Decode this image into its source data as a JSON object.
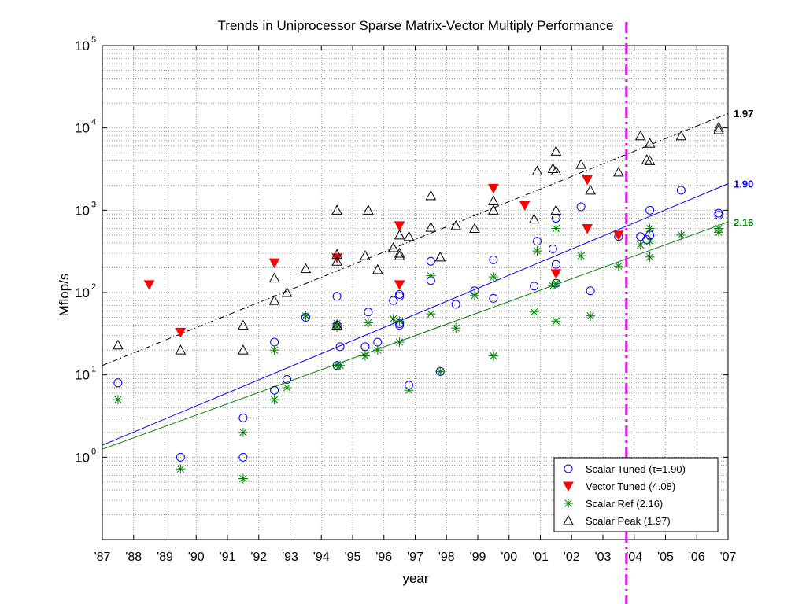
{
  "chart_data": {
    "type": "scatter",
    "title": "Trends in Uniprocessor Sparse Matrix-Vector Multiply Performance",
    "xlabel": "year",
    "ylabel": "Mflop/s",
    "yscale": "log",
    "xlim": [
      1987,
      2007
    ],
    "ylim": [
      0.1,
      100000
    ],
    "grid": true,
    "legend_position": "bottom-right",
    "x_ticks": [
      {
        "v": 1987,
        "label": "'87"
      },
      {
        "v": 1988,
        "label": "'88"
      },
      {
        "v": 1989,
        "label": "'89"
      },
      {
        "v": 1990,
        "label": "'90"
      },
      {
        "v": 1991,
        "label": "'91"
      },
      {
        "v": 1992,
        "label": "'92"
      },
      {
        "v": 1993,
        "label": "'93"
      },
      {
        "v": 1994,
        "label": "'94"
      },
      {
        "v": 1995,
        "label": "'95"
      },
      {
        "v": 1996,
        "label": "'96"
      },
      {
        "v": 1997,
        "label": "'97"
      },
      {
        "v": 1998,
        "label": "'98"
      },
      {
        "v": 1999,
        "label": "'99"
      },
      {
        "v": 2000,
        "label": "'00"
      },
      {
        "v": 2001,
        "label": "'01"
      },
      {
        "v": 2002,
        "label": "'02"
      },
      {
        "v": 2003,
        "label": "'03"
      },
      {
        "v": 2004,
        "label": "'04"
      },
      {
        "v": 2005,
        "label": "'05"
      },
      {
        "v": 2006,
        "label": "'06"
      },
      {
        "v": 2007,
        "label": "'07"
      }
    ],
    "y_ticks": [
      {
        "v": 1,
        "base": "10",
        "exp": "0"
      },
      {
        "v": 10,
        "base": "10",
        "exp": "1"
      },
      {
        "v": 100,
        "base": "10",
        "exp": "2"
      },
      {
        "v": 1000,
        "base": "10",
        "exp": "3"
      },
      {
        "v": 10000,
        "base": "10",
        "exp": "4"
      },
      {
        "v": 100000,
        "base": "10",
        "exp": "5"
      }
    ],
    "vertical_line": {
      "x": 2003.75,
      "color": "#dd22dd"
    },
    "series": [
      {
        "name": "Scalar Tuned (τ=1.90)",
        "marker": "circle",
        "color": "#0000ff",
        "points": [
          [
            1987.5,
            8
          ],
          [
            1989.5,
            1
          ],
          [
            1991.5,
            3
          ],
          [
            1991.5,
            1
          ],
          [
            1992.5,
            25
          ],
          [
            1992.5,
            6.5
          ],
          [
            1992.9,
            8.8
          ],
          [
            1993.5,
            50
          ],
          [
            1994.5,
            90
          ],
          [
            1994.5,
            40
          ],
          [
            1994.5,
            13
          ],
          [
            1994.6,
            22
          ],
          [
            1995.4,
            22
          ],
          [
            1995.5,
            58
          ],
          [
            1995.8,
            25
          ],
          [
            1996.3,
            80
          ],
          [
            1996.5,
            90
          ],
          [
            1996.5,
            95
          ],
          [
            1996.5,
            42
          ],
          [
            1996.5,
            40
          ],
          [
            1996.8,
            7.5
          ],
          [
            1997.5,
            240
          ],
          [
            1997.5,
            140
          ],
          [
            1997.8,
            11
          ],
          [
            1998.3,
            72
          ],
          [
            1998.9,
            105
          ],
          [
            1999.5,
            250
          ],
          [
            1999.5,
            85
          ],
          [
            2000.8,
            120
          ],
          [
            2000.9,
            420
          ],
          [
            2001.4,
            340
          ],
          [
            2001.5,
            800
          ],
          [
            2001.5,
            220
          ],
          [
            2001.5,
            130
          ],
          [
            2002.3,
            1100
          ],
          [
            2002.6,
            105
          ],
          [
            2003.5,
            480
          ],
          [
            2004.2,
            480
          ],
          [
            2004.4,
            440
          ],
          [
            2004.5,
            500
          ],
          [
            2004.5,
            1000
          ],
          [
            2005.5,
            1750
          ],
          [
            2006.7,
            870
          ],
          [
            2006.7,
            920
          ]
        ]
      },
      {
        "name": "Vector Tuned (4.08)",
        "marker": "triangle-down",
        "color": "#ff0000",
        "points": [
          [
            1988.5,
            125
          ],
          [
            1989.5,
            33
          ],
          [
            1992.5,
            230
          ],
          [
            1994.5,
            265
          ],
          [
            1996.5,
            125
          ],
          [
            1996.5,
            650
          ],
          [
            1999.5,
            1850
          ],
          [
            2000.5,
            1150
          ],
          [
            2001.5,
            170
          ],
          [
            2002.5,
            2350
          ],
          [
            2002.5,
            600
          ],
          [
            2003.5,
            500
          ]
        ]
      },
      {
        "name": "Scalar Ref (2.16)",
        "marker": "asterisk",
        "color": "#008000",
        "points": [
          [
            1987.5,
            5
          ],
          [
            1989.5,
            0.72
          ],
          [
            1991.5,
            2
          ],
          [
            1991.5,
            0.55
          ],
          [
            1992.5,
            20
          ],
          [
            1992.5,
            5
          ],
          [
            1992.9,
            7
          ],
          [
            1993.5,
            52
          ],
          [
            1994.5,
            42
          ],
          [
            1994.5,
            38
          ],
          [
            1994.5,
            13
          ],
          [
            1994.6,
            13
          ],
          [
            1995.4,
            17
          ],
          [
            1995.5,
            43
          ],
          [
            1995.8,
            20
          ],
          [
            1996.3,
            48
          ],
          [
            1996.5,
            45
          ],
          [
            1996.5,
            25
          ],
          [
            1996.8,
            6.5
          ],
          [
            1997.5,
            160
          ],
          [
            1997.5,
            55
          ],
          [
            1997.8,
            11
          ],
          [
            1998.3,
            37
          ],
          [
            1998.9,
            92
          ],
          [
            1999.5,
            155
          ],
          [
            1999.5,
            17
          ],
          [
            2000.8,
            58
          ],
          [
            2000.9,
            320
          ],
          [
            2001.4,
            120
          ],
          [
            2001.5,
            600
          ],
          [
            2001.5,
            45
          ],
          [
            2001.5,
            130
          ],
          [
            2002.3,
            280
          ],
          [
            2002.6,
            52
          ],
          [
            2003.5,
            210
          ],
          [
            2004.2,
            380
          ],
          [
            2004.5,
            270
          ],
          [
            2004.5,
            600
          ],
          [
            2004.5,
            420
          ],
          [
            2005.5,
            500
          ],
          [
            2006.7,
            540
          ],
          [
            2006.7,
            600
          ]
        ]
      },
      {
        "name": "Scalar Peak (1.97)",
        "marker": "triangle-up",
        "color": "#000000",
        "points": [
          [
            1987.5,
            23
          ],
          [
            1989.5,
            20
          ],
          [
            1991.5,
            40
          ],
          [
            1991.5,
            20
          ],
          [
            1992.5,
            150
          ],
          [
            1992.5,
            80
          ],
          [
            1992.9,
            100
          ],
          [
            1993.5,
            195
          ],
          [
            1994.5,
            1000
          ],
          [
            1994.5,
            290
          ],
          [
            1994.5,
            240
          ],
          [
            1994.5,
            40
          ],
          [
            1995.5,
            1000
          ],
          [
            1995.4,
            280
          ],
          [
            1995.8,
            190
          ],
          [
            1996.3,
            350
          ],
          [
            1996.5,
            500
          ],
          [
            1996.5,
            280
          ],
          [
            1996.5,
            300
          ],
          [
            1996.8,
            480
          ],
          [
            1997.5,
            1500
          ],
          [
            1997.5,
            620
          ],
          [
            1997.8,
            270
          ],
          [
            1998.3,
            650
          ],
          [
            1998.9,
            600
          ],
          [
            1999.5,
            1300
          ],
          [
            1999.5,
            1000
          ],
          [
            2000.8,
            780
          ],
          [
            2000.9,
            3000
          ],
          [
            2001.4,
            3200
          ],
          [
            2001.5,
            5200
          ],
          [
            2001.5,
            3000
          ],
          [
            2001.5,
            1000
          ],
          [
            2002.3,
            3600
          ],
          [
            2002.6,
            1750
          ],
          [
            2003.5,
            2900
          ],
          [
            2004.2,
            8000
          ],
          [
            2004.4,
            4100
          ],
          [
            2004.5,
            6500
          ],
          [
            2004.5,
            4000
          ],
          [
            2005.5,
            8000
          ],
          [
            2006.7,
            10200
          ],
          [
            2006.7,
            9500
          ]
        ]
      }
    ],
    "trend_lines": [
      {
        "series": "Scalar Peak (1.97)",
        "label": "1.97",
        "color": "#000000",
        "style": "dashdot",
        "from": [
          1987,
          13
        ],
        "to": [
          2007,
          15000
        ]
      },
      {
        "series": "Scalar Tuned (τ=1.90)",
        "label": "1.90",
        "color": "#0000ff",
        "style": "solid",
        "from": [
          1987,
          1.4
        ],
        "to": [
          2007,
          2100
        ]
      },
      {
        "series": "Scalar Ref (2.16)",
        "label": "2.16",
        "color": "#008000",
        "style": "solid",
        "from": [
          1987,
          1.25
        ],
        "to": [
          2007,
          720
        ]
      }
    ]
  }
}
